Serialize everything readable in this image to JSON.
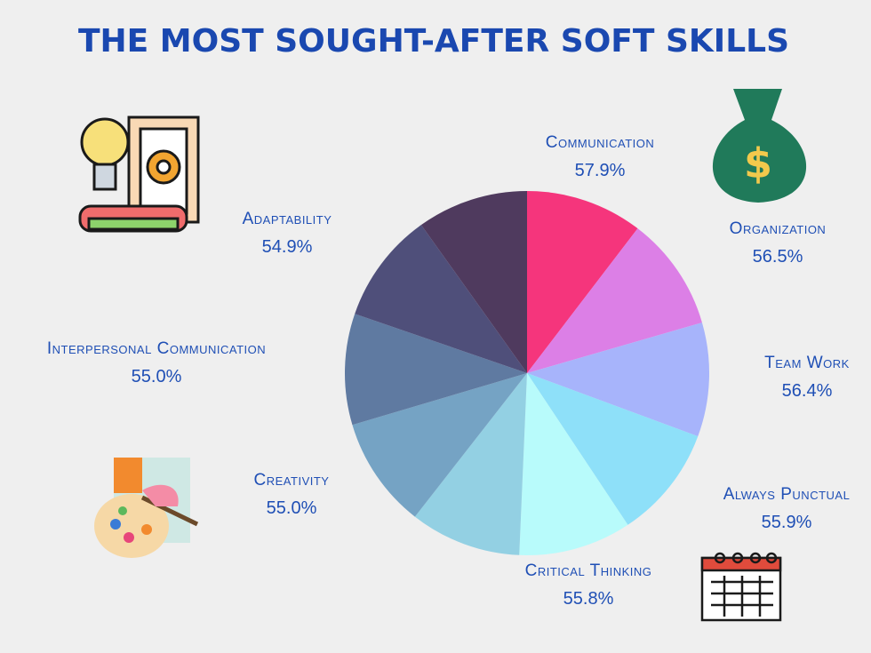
{
  "chart_data": {
    "type": "pie",
    "title": "THE MOST SOUGHT-AFTER SOFT SKILLS",
    "categories": [
      "Communication",
      "Organization",
      "Team Work",
      "Always Punctual",
      "Critical Thinking",
      null,
      "Creativity",
      "Interpersonal Communication",
      "Adaptability",
      null
    ],
    "values": [
      57.9,
      56.5,
      56.4,
      55.9,
      55.8,
      55.0,
      55.0,
      55.0,
      54.9,
      55.0
    ],
    "value_labels": [
      "57.9%",
      "56.5%",
      "56.4%",
      "55.9%",
      "55.8%",
      null,
      "55.0%",
      "55.0%",
      "54.9%",
      null
    ],
    "colors": [
      "#f5357c",
      "#dc7fe6",
      "#a7b4fb",
      "#8ee0f9",
      "#b8fbfb",
      "#93d0e3",
      "#75a3c4",
      "#5f7aa1",
      "#4f4f7a",
      "#4f3a5e"
    ]
  }
}
